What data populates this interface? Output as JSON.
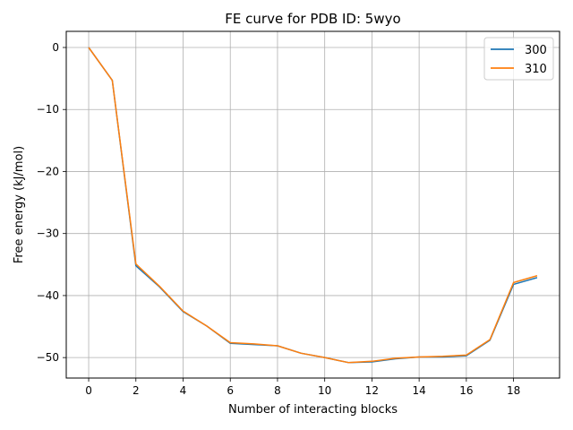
{
  "chart_data": {
    "type": "line",
    "title": "FE curve for PDB ID: 5wyo",
    "xlabel": "Number of interacting blocks",
    "ylabel": "Free energy (kJ/mol)",
    "xlim": [
      -0.95,
      19.95
    ],
    "ylim": [
      -53.3,
      2.6
    ],
    "xticks": [
      0,
      2,
      4,
      6,
      8,
      10,
      12,
      14,
      16,
      18
    ],
    "yticks": [
      0,
      -10,
      -20,
      -30,
      -40,
      -50
    ],
    "grid": true,
    "legend_position": "top-right",
    "x": [
      0,
      1,
      2,
      3,
      4,
      5,
      6,
      7,
      8,
      9,
      10,
      11,
      12,
      13,
      14,
      15,
      16,
      17,
      18,
      19
    ],
    "series": [
      {
        "name": "300",
        "color": "#1f77b4",
        "values": [
          0,
          -5.3,
          -35.2,
          -38.6,
          -42.6,
          -44.9,
          -47.7,
          -47.9,
          -48.1,
          -49.3,
          -50.0,
          -50.8,
          -50.7,
          -50.2,
          -49.9,
          -49.9,
          -49.7,
          -47.2,
          -38.2,
          -37.1
        ]
      },
      {
        "name": "310",
        "color": "#ff7f0e",
        "values": [
          0,
          -5.3,
          -34.9,
          -38.5,
          -42.5,
          -44.9,
          -47.6,
          -47.8,
          -48.1,
          -49.3,
          -50.0,
          -50.8,
          -50.6,
          -50.1,
          -49.9,
          -49.8,
          -49.6,
          -47.1,
          -37.9,
          -36.8
        ]
      }
    ]
  }
}
